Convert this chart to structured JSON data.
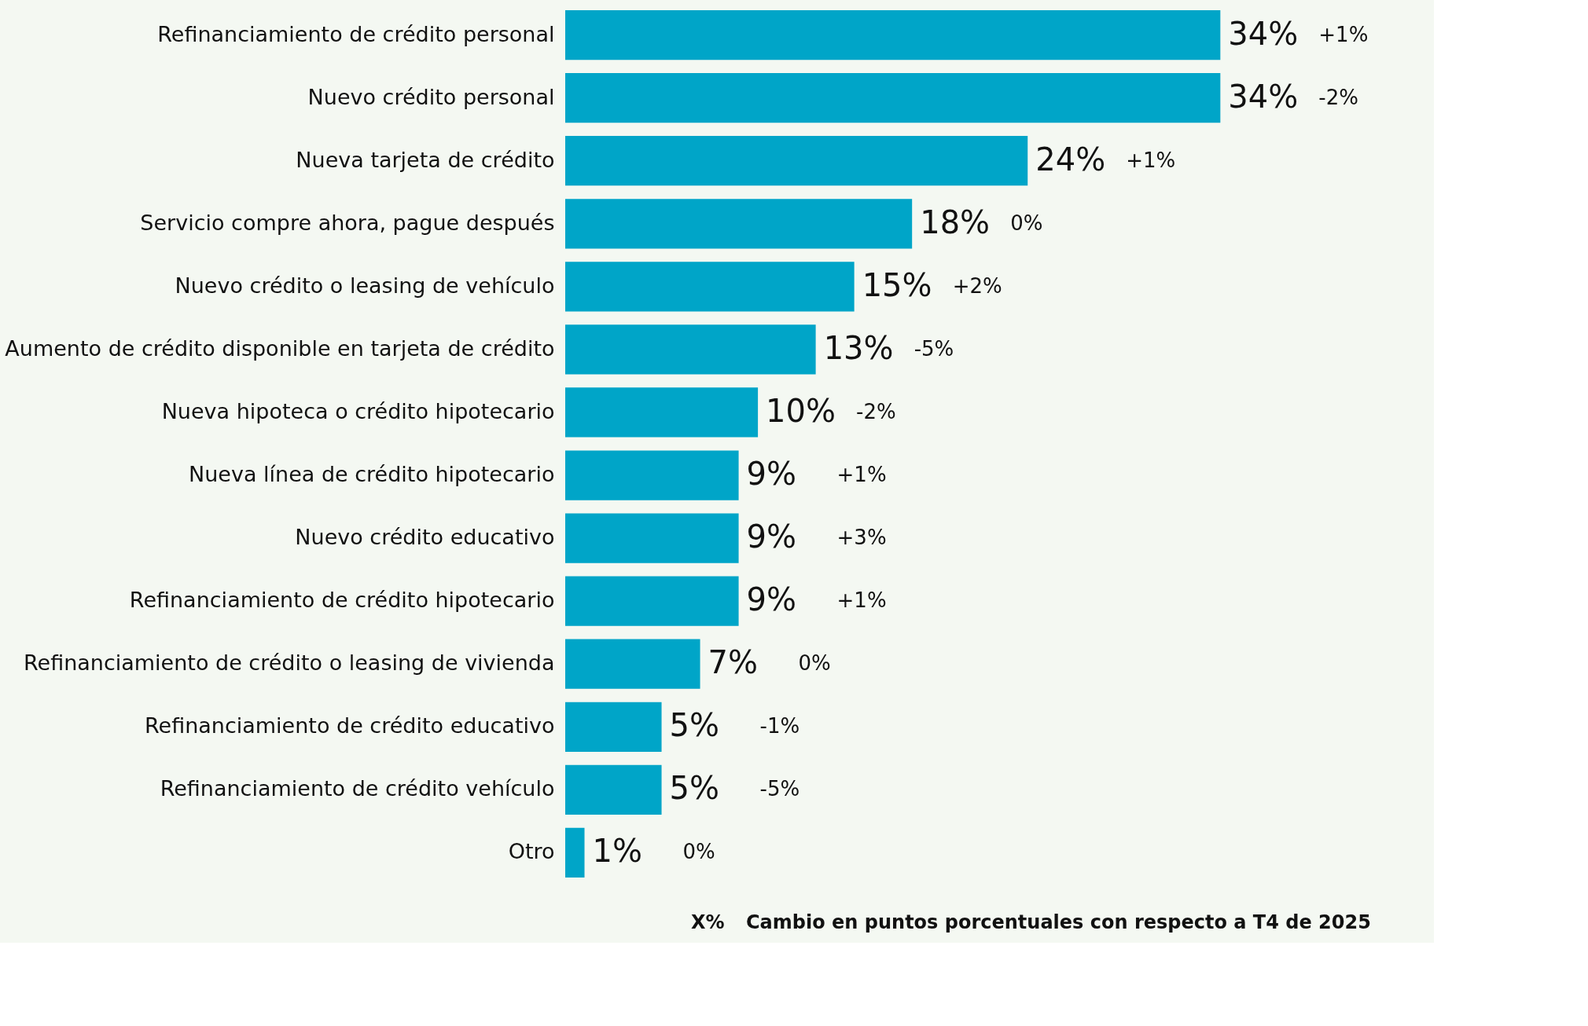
{
  "chart_data": {
    "type": "bar",
    "orientation": "horizontal",
    "grid": false,
    "categories": [
      "Refinanciamiento de crédito personal",
      "Nuevo crédito personal",
      "Nueva tarjeta de crédito",
      "Servicio compre ahora, pague después",
      "Nuevo crédito o leasing de vehículo",
      "Aumento de crédito disponible en tarjeta de crédito",
      "Nueva hipoteca o crédito hipotecario",
      "Nueva línea de crédito hipotecario",
      "Nuevo crédito educativo",
      "Refinanciamiento de crédito hipotecario",
      "Refinanciamiento de crédito o leasing de vivienda",
      "Refinanciamiento de crédito educativo",
      "Refinanciamiento de crédito vehículo",
      "Otro"
    ],
    "series": [
      {
        "color": "#00a5c8",
        "values": [
          34,
          34,
          24,
          18,
          15,
          13,
          10,
          9,
          9,
          9,
          7,
          5,
          5,
          1
        ],
        "value_labels": [
          "34%",
          "34%",
          "24%",
          "18%",
          "15%",
          "13%",
          "10%",
          "9%",
          "9%",
          "9%",
          "7%",
          "5%",
          "5%",
          "1%"
        ]
      }
    ],
    "annotations": [
      "+1%",
      "-2%",
      "+1%",
      "0%",
      "+2%",
      "-5%",
      "-2%",
      "+1%",
      "+3%",
      "+1%",
      "0%",
      "-1%",
      "-5%",
      "0%",
      "X%",
      "Cambio en puntos porcentuales con respecto a T4 de 2025"
    ]
  }
}
